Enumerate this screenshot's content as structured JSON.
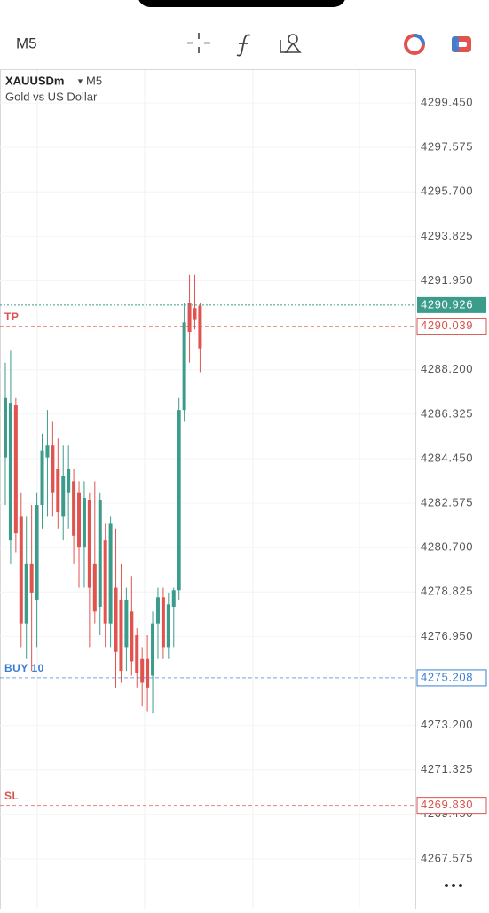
{
  "toolbar": {
    "timeframe": "M5"
  },
  "chart_data": {
    "type": "candlestick",
    "symbol": "XAUUSDm",
    "timeframe": "M5",
    "description": "Gold vs US Dollar",
    "up_color": "#3b9c8c",
    "down_color": "#e0534f",
    "candles": {
      "open": [
        4284.5,
        4281,
        4286.7,
        4282,
        4277.5,
        4280,
        4278.5,
        4282.5,
        4284.5,
        4285,
        4284,
        4282,
        4283,
        4283.5,
        4283,
        4280.7,
        4282.7,
        4280,
        4278.2,
        4281,
        4277.5,
        4279,
        4278.5,
        4276.5,
        4278,
        4277,
        4276,
        4276,
        4275.3,
        4277.5,
        4278.6,
        4276.5,
        4278.2,
        4278.9,
        4286.5,
        4291,
        4290.8,
        4290.9
      ],
      "high": [
        4288.5,
        4289,
        4287,
        4283,
        4282,
        4282.5,
        4283,
        4285.5,
        4286.5,
        4286,
        4285.3,
        4285,
        4285,
        4284,
        4283.5,
        4283.5,
        4283,
        4283.5,
        4283,
        4281.7,
        4282,
        4281.5,
        4280,
        4279,
        4279.5,
        4277.3,
        4276.5,
        4277,
        4278,
        4279,
        4279,
        4278.8,
        4279,
        4287,
        4291,
        4292.2,
        4292.2,
        4291
      ],
      "low": [
        4282.5,
        4280,
        4280.5,
        4276.5,
        4276,
        4275.5,
        4276.5,
        4281.5,
        4282,
        4282,
        4281.5,
        4281,
        4281.5,
        4280,
        4279,
        4279,
        4276.5,
        4277.5,
        4277,
        4276.5,
        4276.5,
        4274.8,
        4275,
        4275.5,
        4275.3,
        4274.8,
        4274,
        4273.8,
        4273.7,
        4276,
        4276,
        4276,
        4276.5,
        4278.5,
        4286,
        4288.5,
        4289.9,
        4288.1
      ],
      "close": [
        4287,
        4286.8,
        4281.3,
        4277.5,
        4280,
        4278.8,
        4282.5,
        4284.8,
        4285,
        4283,
        4282.2,
        4283.7,
        4284,
        4281.2,
        4280.7,
        4282.8,
        4279,
        4278,
        4282.7,
        4277.5,
        4281.7,
        4276.3,
        4275.5,
        4278.5,
        4275.9,
        4275.4,
        4275,
        4274.8,
        4277.5,
        4278.6,
        4276.5,
        4278.3,
        4278.9,
        4286.5,
        4290.2,
        4289.8,
        4290.3,
        4289.1
      ]
    },
    "ylim": [
      4266.0,
      4300.8
    ],
    "yticks": [
      {
        "value": 4299.45,
        "label": "4299.450"
      },
      {
        "value": 4297.575,
        "label": "4297.575"
      },
      {
        "value": 4295.7,
        "label": "4295.700"
      },
      {
        "value": 4293.825,
        "label": "4293.825"
      },
      {
        "value": 4291.95,
        "label": "4291.950"
      },
      {
        "value": 4288.2,
        "label": "4288.200"
      },
      {
        "value": 4286.325,
        "label": "4286.325"
      },
      {
        "value": 4284.45,
        "label": "4284.450"
      },
      {
        "value": 4282.575,
        "label": "4282.575"
      },
      {
        "value": 4280.7,
        "label": "4280.700"
      },
      {
        "value": 4278.825,
        "label": "4278.825"
      },
      {
        "value": 4276.95,
        "label": "4276.950"
      },
      {
        "value": 4273.2,
        "label": "4273.200"
      },
      {
        "value": 4271.325,
        "label": "4271.325"
      },
      {
        "value": 4269.45,
        "label": "4269.450"
      },
      {
        "value": 4267.575,
        "label": "4267.575"
      }
    ],
    "current_price": {
      "value": 4290.926,
      "value_label": "4290.926",
      "color": "#3b9c8c"
    },
    "price_lines": [
      {
        "label": "TP",
        "value": 4290.039,
        "value_label": "4290.039",
        "color": "#d9534f"
      },
      {
        "label": "BUY 10",
        "value": 4275.208,
        "value_label": "4275.208",
        "color": "#3a7fd5"
      },
      {
        "label": "SL",
        "value": 4269.83,
        "value_label": "4269.830",
        "color": "#d9534f"
      }
    ]
  }
}
